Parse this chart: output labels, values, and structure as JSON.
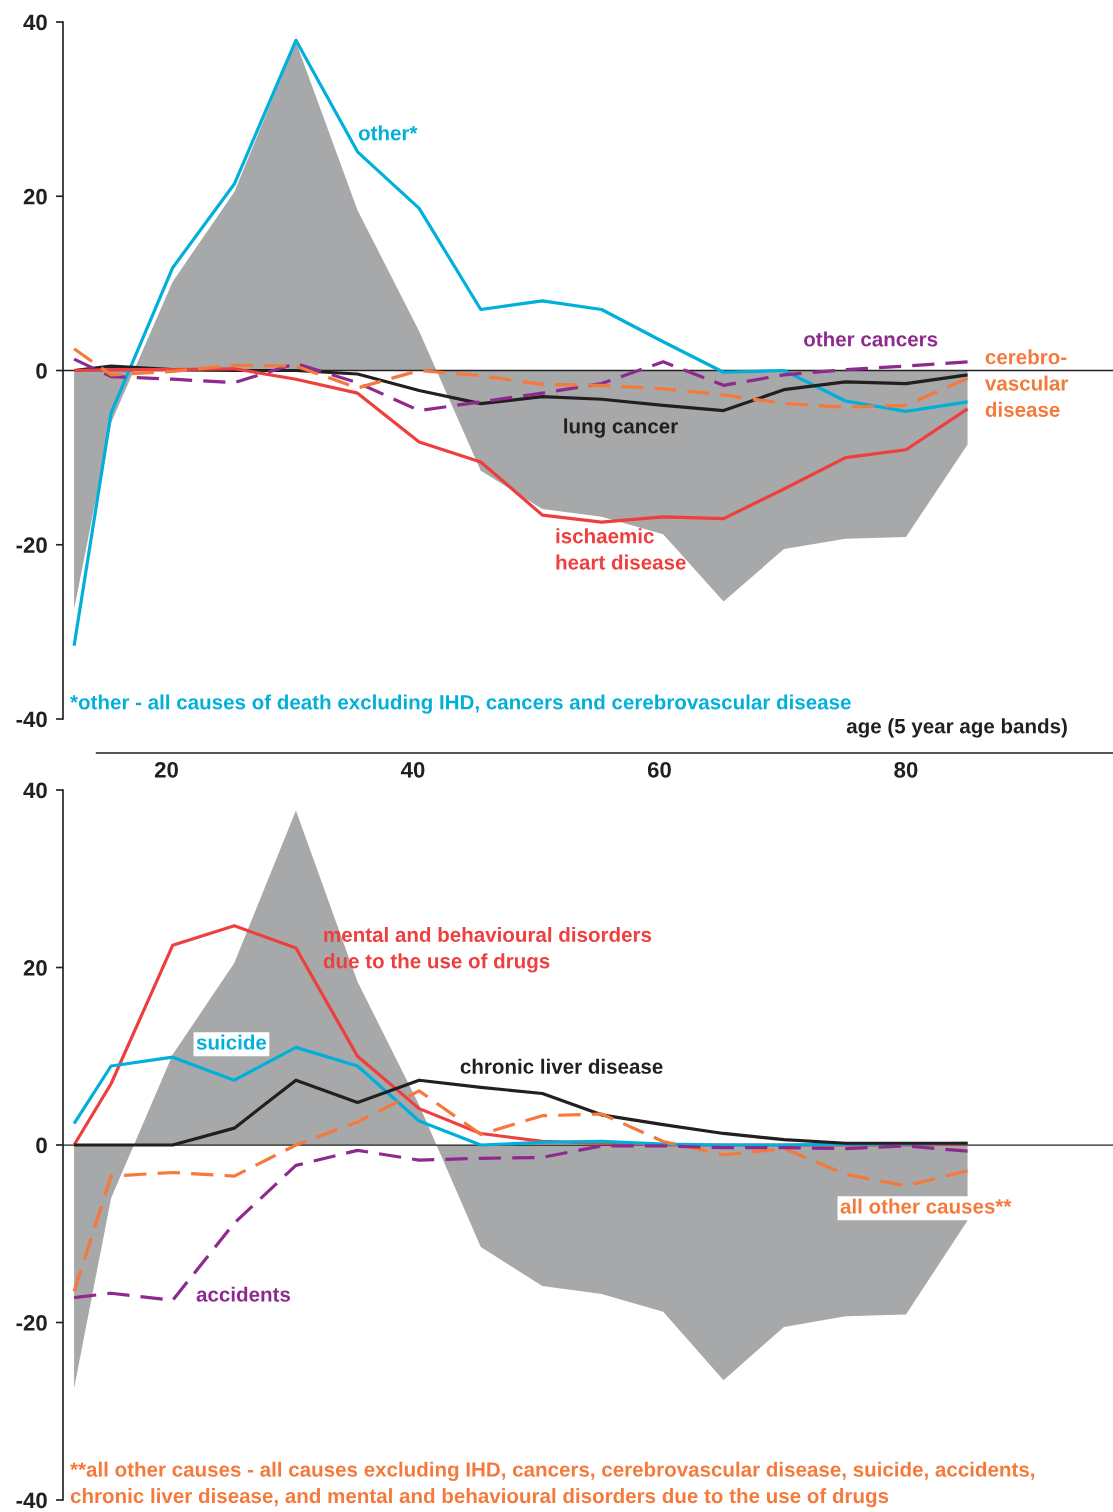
{
  "chart_data": [
    {
      "type": "line",
      "x": [
        12.5,
        15.5,
        20.5,
        25.5,
        30.5,
        35.5,
        40.5,
        45.5,
        50.5,
        55.3,
        60.3,
        65.2,
        70.1,
        75.1,
        80,
        85
      ],
      "xlim": [
        11.6,
        96.8
      ],
      "xticks": [
        20,
        40,
        60,
        80
      ],
      "xlabel": "age (5 year age bands)",
      "ylim": [
        -40,
        40
      ],
      "yticks": [
        -40,
        -20,
        0,
        20,
        40
      ],
      "legend": false,
      "grid": false,
      "ref_lines": [
        {
          "axis": "y",
          "value": 0,
          "color": "#231f20"
        }
      ],
      "series": [
        {
          "type": "area",
          "color": "#a7a8aa",
          "values": [
            -27.4,
            -6.0,
            10.2,
            20.5,
            37.7,
            18.4,
            4.5,
            -11.5,
            -15.9,
            -16.8,
            -18.8,
            -26.5,
            -20.5,
            -19.3,
            -19.1,
            -8.5
          ]
        },
        {
          "name": "other*",
          "color": "#00b0db",
          "line_style": "solid",
          "values": [
            -31.6,
            -4.9,
            11.8,
            21.4,
            37.9,
            25.1,
            18.6,
            7.0,
            8.0,
            7.0,
            3.3,
            -0.2,
            0.0,
            -3.5,
            -4.7,
            -3.6
          ]
        },
        {
          "name": "lung cancer",
          "color": "#231f20",
          "line_style": "solid",
          "values": [
            0.0,
            0.5,
            0.1,
            0.0,
            0.0,
            -0.4,
            -2.3,
            -3.8,
            -3.0,
            -3.3,
            -4.0,
            -4.6,
            -2.2,
            -1.3,
            -1.5,
            -0.5
          ]
        },
        {
          "name": "ischaemic\nheart disease",
          "color": "#ee3e3e",
          "line_style": "solid",
          "values": [
            0.0,
            0.1,
            0.1,
            0.2,
            -1.0,
            -2.6,
            -8.2,
            -10.5,
            -16.6,
            -17.4,
            -16.8,
            -17.0,
            -13.6,
            -10.0,
            -9.1,
            -4.4
          ]
        },
        {
          "name": "other cancers",
          "color": "#8e2a8e",
          "line_style": "dashed",
          "values": [
            1.3,
            -0.7,
            -1.0,
            -1.4,
            0.8,
            -1.4,
            -4.6,
            -3.6,
            -2.6,
            -1.5,
            1.0,
            -1.7,
            -0.5,
            0.1,
            0.5,
            1.0
          ]
        },
        {
          "name": "cerebro-\nvascular\ndisease",
          "color": "#f4793b",
          "line_style": "dashed",
          "values": [
            2.5,
            -0.5,
            -0.1,
            0.6,
            0.5,
            -2.0,
            0.0,
            -0.6,
            -1.6,
            -1.7,
            -2.1,
            -2.8,
            -3.8,
            -4.2,
            -4.0,
            -0.9
          ]
        }
      ],
      "annotations": [
        "*other - all causes of death excluding IHD, cancers and cerebrovascular disease"
      ]
    },
    {
      "type": "line",
      "x": [
        12.5,
        15.5,
        20.5,
        25.5,
        30.5,
        35.5,
        40.5,
        45.5,
        50.5,
        55.3,
        60.3,
        65.2,
        70.1,
        75.1,
        80,
        85
      ],
      "xlim": [
        11.6,
        96.8
      ],
      "ylim": [
        -40,
        40
      ],
      "yticks": [
        -40,
        -20,
        0,
        20,
        40
      ],
      "tick_labels": "y",
      "legend": false,
      "grid": false,
      "ref_lines": [
        {
          "axis": "y",
          "value": 0,
          "color": "#231f20"
        }
      ],
      "series": [
        {
          "type": "area",
          "color": "#a7a8aa",
          "values": [
            -27.4,
            -6.0,
            10.2,
            20.5,
            37.7,
            18.4,
            4.5,
            -11.5,
            -15.9,
            -16.8,
            -18.8,
            -26.5,
            -20.5,
            -19.3,
            -19.1,
            -8.5
          ]
        },
        {
          "name": "mental and behavioural disorders\ndue to the use of drugs",
          "color": "#ee3e3e",
          "line_style": "solid",
          "values": [
            0.0,
            6.9,
            22.5,
            24.7,
            22.2,
            10.0,
            4.1,
            1.3,
            0.4,
            0.2,
            0.0,
            0.0,
            0.0,
            0.0,
            0.0,
            0.1
          ]
        },
        {
          "name": "suicide",
          "color": "#00b0db",
          "line_style": "solid",
          "values": [
            2.4,
            8.9,
            9.9,
            7.3,
            11.0,
            8.9,
            2.7,
            0.0,
            0.3,
            0.4,
            0.1,
            0.0,
            0.0,
            0.1,
            0.1,
            0.2
          ]
        },
        {
          "name": "chronic liver disease",
          "color": "#231f20",
          "line_style": "solid",
          "values": [
            0.0,
            0.0,
            0.0,
            1.9,
            7.3,
            4.8,
            7.3,
            6.5,
            5.8,
            3.4,
            2.3,
            1.3,
            0.6,
            0.2,
            0.2,
            0.2
          ]
        },
        {
          "name": "all other causes**",
          "color": "#f4793b",
          "line_style": "dashed",
          "values": [
            -16.5,
            -3.5,
            -3.1,
            -3.5,
            0.0,
            2.6,
            6.1,
            1.2,
            3.3,
            3.5,
            0.4,
            -1.1,
            -0.4,
            -3.3,
            -4.6,
            -2.9
          ]
        },
        {
          "name": "accidents",
          "color": "#8e2a8e",
          "line_style": "dashed",
          "values": [
            -17.2,
            -16.7,
            -17.5,
            -8.8,
            -2.3,
            -0.6,
            -1.7,
            -1.5,
            -1.4,
            -0.1,
            -0.1,
            -0.3,
            -0.3,
            -0.4,
            -0.1,
            -0.7
          ]
        }
      ],
      "annotations": [
        "**all other causes - all causes excluding IHD, cancers, cerebrovascular disease, suicide, accidents,\nchronic liver disease, and mental and behavioural disorders due to the use of drugs"
      ]
    }
  ]
}
